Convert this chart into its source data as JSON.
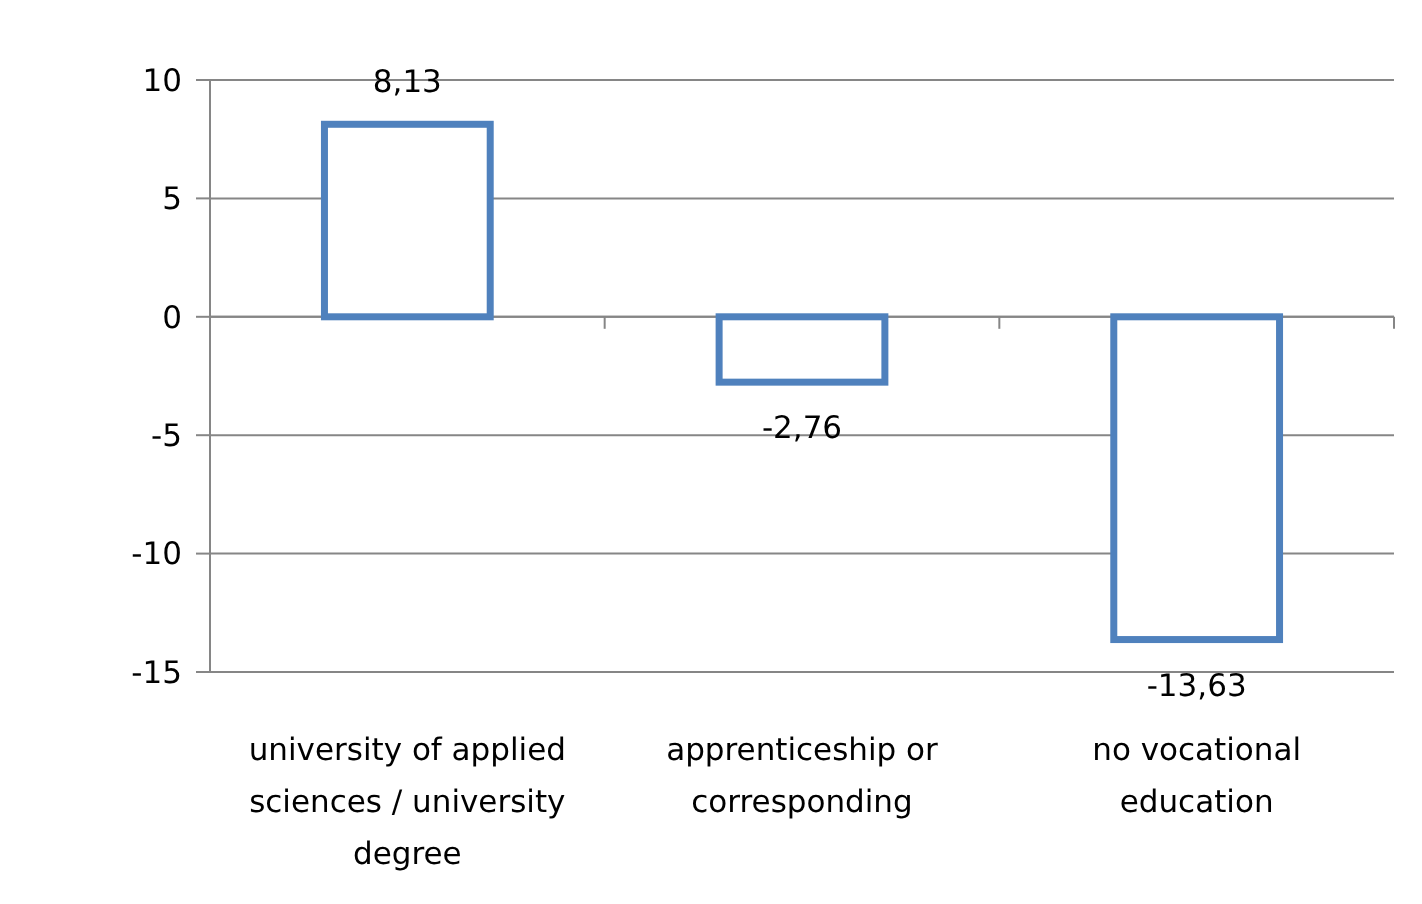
{
  "chart_data": {
    "type": "bar",
    "categories": [
      "university of applied sciences / university degree",
      "apprenticeship  or corresponding",
      "no vocational education"
    ],
    "values": [
      8.13,
      -2.76,
      -13.63
    ],
    "value_labels": [
      "8,13",
      "-2,76",
      "-13,63"
    ],
    "color": "#4f81bd",
    "ylim": [
      -15,
      10
    ],
    "yticks": [
      -15,
      -10,
      -5,
      0,
      5,
      10
    ],
    "grid": "y"
  }
}
